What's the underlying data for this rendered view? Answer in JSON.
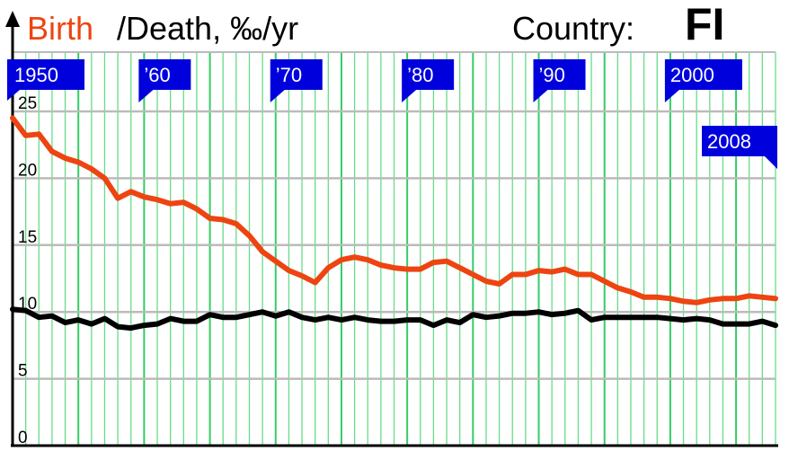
{
  "header": {
    "birth_label": "Birth",
    "death_label": "/Death, ‰/yr",
    "country_label": "Country:",
    "country_code": "FI"
  },
  "colors": {
    "birth": "#ee4411",
    "death": "#000000",
    "grid_minor": "#66dd88",
    "grid_major": "#33cc66",
    "grid_horizontal": "#bbbbbb",
    "flag": "#0000dd",
    "background": "#ffffff"
  },
  "chart_data": {
    "type": "line",
    "x": [
      1950,
      1951,
      1952,
      1953,
      1954,
      1955,
      1956,
      1957,
      1958,
      1959,
      1960,
      1961,
      1962,
      1963,
      1964,
      1965,
      1966,
      1967,
      1968,
      1969,
      1970,
      1971,
      1972,
      1973,
      1974,
      1975,
      1976,
      1977,
      1978,
      1979,
      1980,
      1981,
      1982,
      1983,
      1984,
      1985,
      1986,
      1987,
      1988,
      1989,
      1990,
      1991,
      1992,
      1993,
      1994,
      1995,
      1996,
      1997,
      1998,
      1999,
      2000,
      2001,
      2002,
      2003,
      2004,
      2005,
      2006,
      2007,
      2008
    ],
    "series": [
      {
        "name": "Birth",
        "color": "#ee4411",
        "values": [
          24.5,
          23.2,
          23.3,
          22.0,
          21.5,
          21.2,
          20.7,
          20.0,
          18.5,
          19.0,
          18.6,
          18.4,
          18.1,
          18.2,
          17.7,
          17.0,
          16.9,
          16.6,
          15.7,
          14.5,
          13.8,
          13.1,
          12.7,
          12.2,
          13.3,
          13.9,
          14.1,
          13.9,
          13.5,
          13.3,
          13.2,
          13.2,
          13.7,
          13.8,
          13.3,
          12.8,
          12.3,
          12.1,
          12.8,
          12.8,
          13.1,
          13.0,
          13.2,
          12.8,
          12.8,
          12.3,
          11.8,
          11.5,
          11.1,
          11.1,
          11.0,
          10.8,
          10.7,
          10.9,
          11.0,
          11.0,
          11.2,
          11.1,
          11.0
        ],
        "labels": [
          "Birth"
        ]
      },
      {
        "name": "Death",
        "color": "#000000",
        "values": [
          10.2,
          10.1,
          9.6,
          9.7,
          9.2,
          9.4,
          9.1,
          9.5,
          8.9,
          8.8,
          9.0,
          9.1,
          9.5,
          9.3,
          9.3,
          9.8,
          9.6,
          9.6,
          9.8,
          10.0,
          9.7,
          10.0,
          9.6,
          9.4,
          9.6,
          9.4,
          9.6,
          9.4,
          9.3,
          9.3,
          9.4,
          9.4,
          9.0,
          9.4,
          9.2,
          9.8,
          9.6,
          9.7,
          9.9,
          9.9,
          10.0,
          9.8,
          9.9,
          10.1,
          9.4,
          9.6,
          9.6,
          9.6,
          9.6,
          9.6,
          9.5,
          9.4,
          9.5,
          9.4,
          9.1,
          9.1,
          9.1,
          9.3,
          9.0
        ]
      }
    ],
    "xlim": [
      1950,
      2008
    ],
    "ylim": [
      0,
      27
    ],
    "yticks": [
      "0",
      "5",
      "10",
      "15",
      "20",
      "25"
    ],
    "ytick_values": [
      0,
      5,
      10,
      15,
      20,
      25
    ],
    "decade_flags": [
      {
        "year": 1950,
        "label": "1950",
        "anchor": "left"
      },
      {
        "year": 1960,
        "label": "’60",
        "anchor": "left"
      },
      {
        "year": 1970,
        "label": "’70",
        "anchor": "left"
      },
      {
        "year": 1980,
        "label": "’80",
        "anchor": "left"
      },
      {
        "year": 1990,
        "label": "’90",
        "anchor": "left"
      },
      {
        "year": 2000,
        "label": "2000",
        "anchor": "left"
      },
      {
        "year": 2008,
        "label": "2008",
        "anchor": "right"
      }
    ],
    "grid": true
  }
}
